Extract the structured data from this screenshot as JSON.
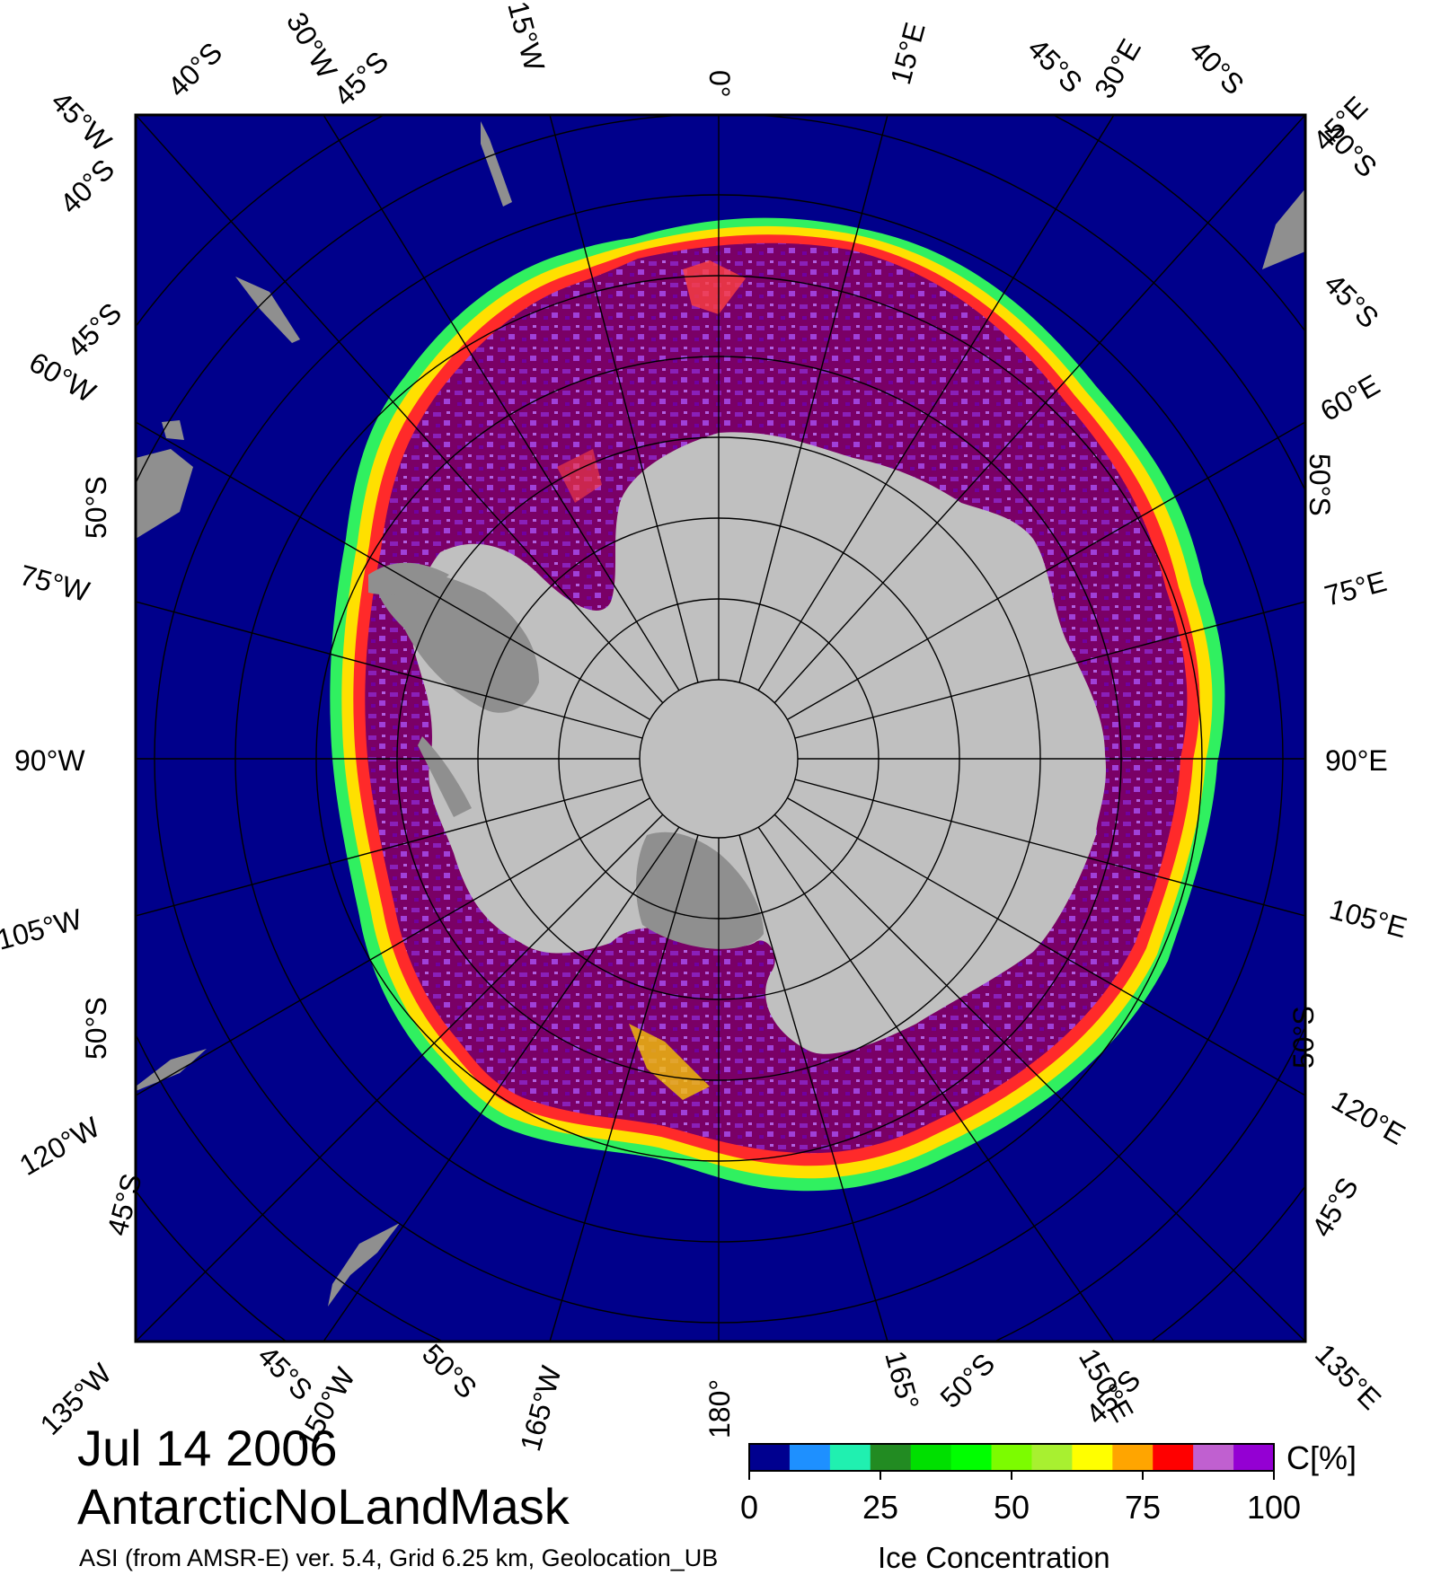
{
  "title": {
    "date": "Jul 14 2006",
    "product": "AntarcticNoLandMask",
    "source": "ASI (from AMSR-E) ver. 5.4,  Grid 6.25 km, Geolocation_UB",
    "quantity": "Ice Concentration"
  },
  "colorbar": {
    "unit": "C[%]",
    "ticks": [
      "0",
      "25",
      "50",
      "75",
      "100"
    ],
    "range": [
      0,
      100
    ],
    "colors": [
      "#00008f",
      "#1e90ff",
      "#20f0b0",
      "#228b22",
      "#00e000",
      "#00ff00",
      "#7cfc00",
      "#a8f030",
      "#ffff00",
      "#ffa500",
      "#ff0000",
      "#c060d0",
      "#9400d3"
    ]
  },
  "map": {
    "projection": "south polar stereographic",
    "colors": {
      "ocean": "#00008b",
      "pack_ice": "#7a0066",
      "ice_high": "#9a28d0",
      "ice_edge": "#ff2a2a",
      "ice_margin": "#ffe000",
      "ice_low": "#30f060",
      "continent": "#c0c0c0",
      "ice_shelf": "#8f8f8f",
      "land": "#8f8f8f",
      "graticule": "#000000"
    },
    "longitude_labels": {
      "top": [
        "40°S",
        "45°W",
        "30°W",
        "45°S",
        "15°W",
        "0°",
        "15°E",
        "45°S",
        "30°E",
        "40°S",
        "45°E"
      ],
      "left": [
        "40°S",
        "45°S",
        "60°W",
        "50°S",
        "75°W",
        "90°W",
        "105°W",
        "50°S",
        "120°W",
        "45°S"
      ],
      "right": [
        "40°S",
        "45°S",
        "60°E",
        "50°S",
        "75°E",
        "90°E",
        "105°E",
        "50°S",
        "120°E",
        "45°S"
      ],
      "bottom": [
        "135°W",
        "45°S",
        "150°W",
        "50°S",
        "165°W",
        "180°",
        "165°",
        "50°S",
        "150°E",
        "45°S",
        "135°E"
      ]
    }
  }
}
